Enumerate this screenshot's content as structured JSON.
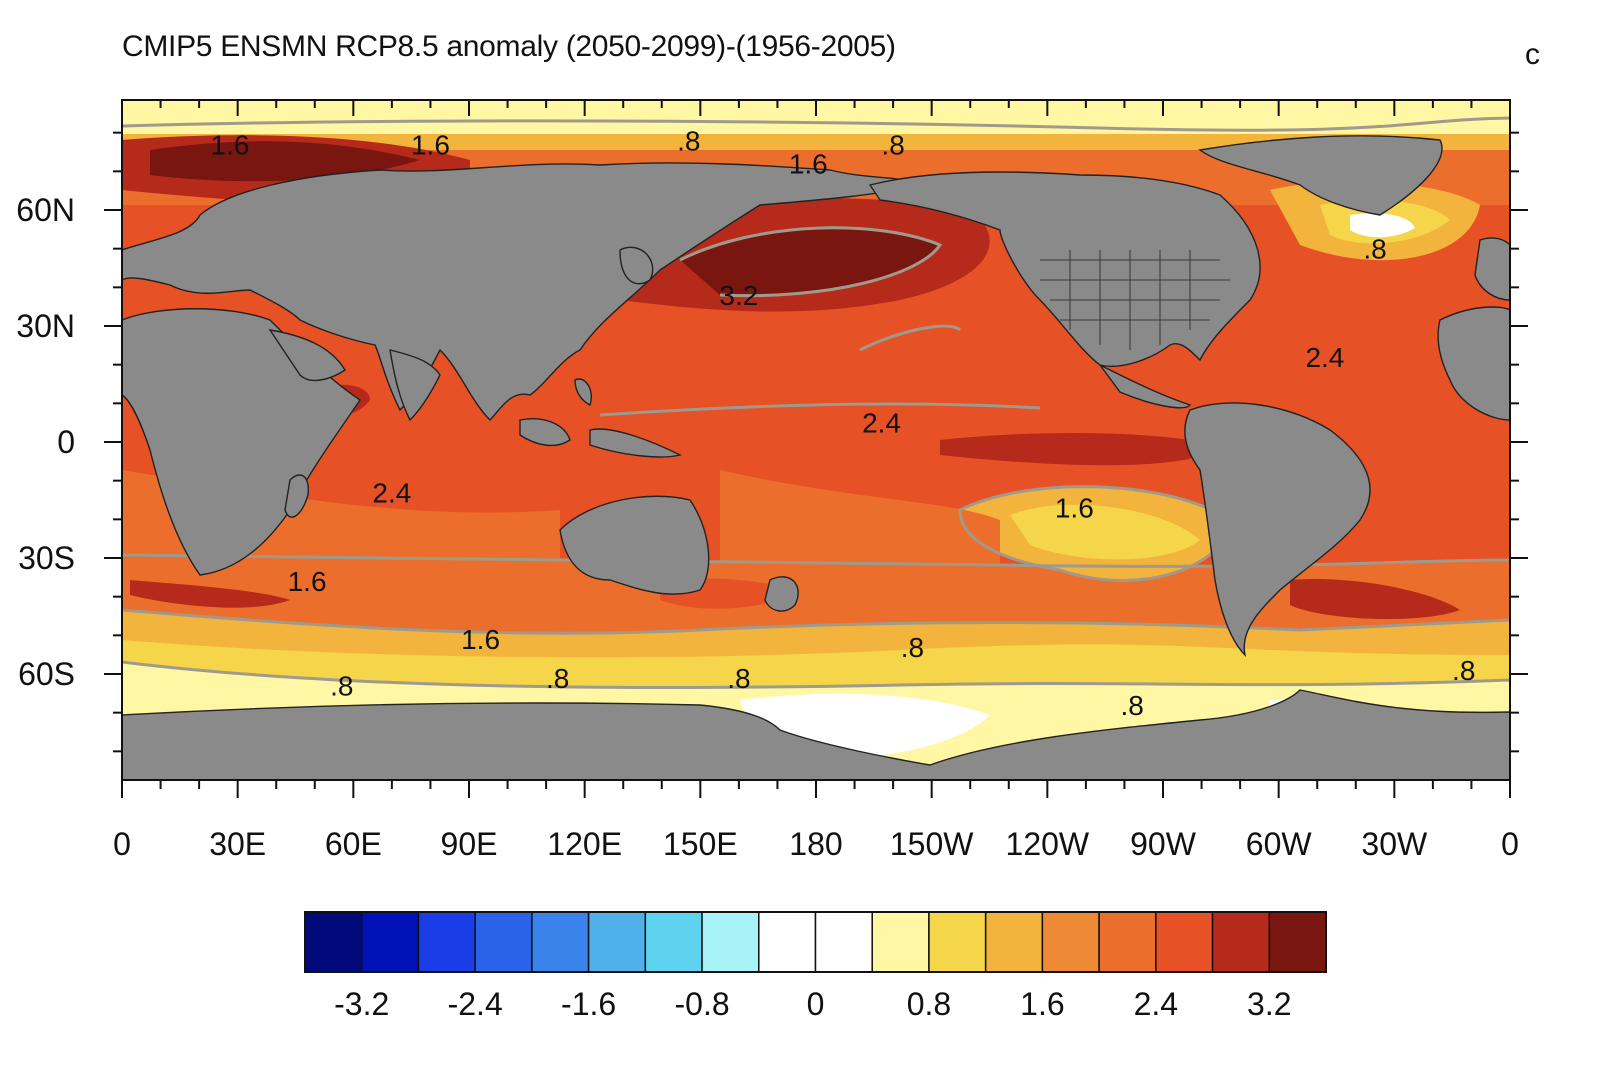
{
  "title": "CMIP5 ENSMN RCP8.5 anomaly (2050-2099)-(1956-2005)",
  "panel_label": "c",
  "colors": {
    "land": "#8a8a8a",
    "contour_line": "#a09a8c",
    "levels": [
      "#000a7a",
      "#0012b8",
      "#1a3de8",
      "#2a62ea",
      "#3a83ea",
      "#4fb0ea",
      "#5fd2ef",
      "#a7f3f7",
      "#ffffff",
      "#ffffff",
      "#fff7a3",
      "#f5d54a",
      "#f2b43c",
      "#ee8a35",
      "#ec6e2c",
      "#e65126",
      "#b62a1b",
      "#7a1610"
    ]
  },
  "x_ticks": [
    "0",
    "30E",
    "60E",
    "90E",
    "120E",
    "150E",
    "180",
    "150W",
    "120W",
    "90W",
    "60W",
    "30W",
    "0"
  ],
  "y_ticks": [
    "60N",
    "30N",
    "0",
    "30S",
    "60S"
  ],
  "colorbar": {
    "labels": [
      "-3.2",
      "-2.4",
      "-1.6",
      "-0.8",
      "0",
      "0.8",
      "1.6",
      "2.4",
      "3.2"
    ]
  },
  "contour_labels": [
    "1.6",
    "1.6",
    ".8",
    ".8",
    "1.6",
    "3.2",
    "2.4",
    "2.4",
    "2.4",
    "1.6",
    "1.6",
    "1.6",
    ".8",
    ".8",
    ".8",
    ".8",
    ".8",
    ".8",
    ".8"
  ],
  "chart_data": {
    "type": "heatmap",
    "title": "CMIP5 ENSMN RCP8.5 anomaly (2050-2099)-(1956-2005)",
    "xlabel": "",
    "ylabel": "",
    "x_ticks": [
      "0",
      "30E",
      "60E",
      "90E",
      "120E",
      "150E",
      "180",
      "150W",
      "120W",
      "90W",
      "60W",
      "30W",
      "0"
    ],
    "y_ticks": [
      "60N",
      "30N",
      "0",
      "30S",
      "60S"
    ],
    "xlim": [
      0,
      360
    ],
    "ylim": [
      -90,
      90
    ],
    "color_levels": [
      -3.2,
      -2.8,
      -2.4,
      -2.0,
      -1.6,
      -1.2,
      -0.8,
      -0.4,
      0,
      0.4,
      0.8,
      1.2,
      1.6,
      2.0,
      2.4,
      2.8,
      3.2
    ],
    "colorbar_labels": [
      "-3.2",
      "-2.4",
      "-1.6",
      "-0.8",
      "0",
      "0.8",
      "1.6",
      "2.4",
      "3.2"
    ],
    "contour_labels": [
      {
        "text": "1.6",
        "lon": 28,
        "lat": 77
      },
      {
        "text": "1.6",
        "lon": 80,
        "lat": 77
      },
      {
        "text": ".8",
        "lon": 147,
        "lat": 78
      },
      {
        "text": ".8",
        "lon": 200,
        "lat": 77
      },
      {
        "text": "1.6",
        "lon": 178,
        "lat": 72
      },
      {
        "text": "3.2",
        "lon": 160,
        "lat": 38
      },
      {
        "text": "2.4",
        "lon": 197,
        "lat": 5
      },
      {
        "text": "2.4",
        "lon": 312,
        "lat": 22
      },
      {
        "text": "2.4",
        "lon": 70,
        "lat": -13
      },
      {
        "text": "1.6",
        "lon": 247,
        "lat": -17
      },
      {
        "text": "1.6",
        "lon": 48,
        "lat": -36
      },
      {
        "text": "1.6",
        "lon": 93,
        "lat": -51
      },
      {
        "text": ".8",
        "lon": 205,
        "lat": -53
      },
      {
        "text": ".8",
        "lon": 57,
        "lat": -63
      },
      {
        "text": ".8",
        "lon": 113,
        "lat": -61
      },
      {
        "text": ".8",
        "lon": 160,
        "lat": -61
      },
      {
        "text": ".8",
        "lon": 262,
        "lat": -68
      },
      {
        "text": ".8",
        "lon": 348,
        "lat": -59
      },
      {
        "text": ".8",
        "lon": 325,
        "lat": 50
      }
    ]
  }
}
